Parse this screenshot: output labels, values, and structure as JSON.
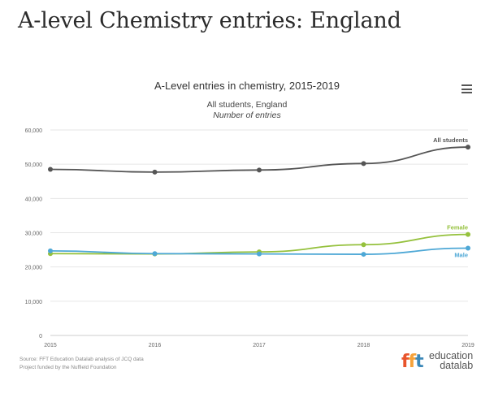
{
  "page": {
    "title": "A-level Chemistry entries: England"
  },
  "menu": {
    "icon": "hamburger-menu-icon"
  },
  "footer": {
    "source": "Source: FFT Education Datalab analysis of JCQ data",
    "funding": "Project funded by the Nuffield Foundation"
  },
  "logo": {
    "word1": "education",
    "word2": "datalab"
  },
  "colors": {
    "all_students": "#555555",
    "female": "#95c13d",
    "male": "#4ea8d6",
    "logo_orange": "#e8542c",
    "logo_yellow": "#f6a23a",
    "logo_blue": "#3c88b8"
  },
  "chart_data": {
    "type": "line",
    "title": "A-Level entries in chemistry, 2015-2019",
    "subtitle": "All students, England",
    "subtitle2": "Number of entries",
    "x": [
      "2015",
      "2016",
      "2017",
      "2018",
      "2019"
    ],
    "ylim": [
      0,
      60000
    ],
    "yticks": [
      "0",
      "10,000",
      "20,000",
      "30,000",
      "40,000",
      "50,000",
      "60,000"
    ],
    "ytick_values": [
      0,
      10000,
      20000,
      30000,
      40000,
      50000,
      60000
    ],
    "grid": true,
    "series": [
      {
        "name": "All students",
        "values": [
          48500,
          47700,
          48300,
          50200,
          55000
        ],
        "color": "#555555"
      },
      {
        "name": "Female",
        "values": [
          23900,
          23800,
          24400,
          26500,
          29500
        ],
        "color": "#95c13d"
      },
      {
        "name": "Male",
        "values": [
          24700,
          23900,
          23800,
          23700,
          25500
        ],
        "color": "#4ea8d6"
      }
    ]
  }
}
